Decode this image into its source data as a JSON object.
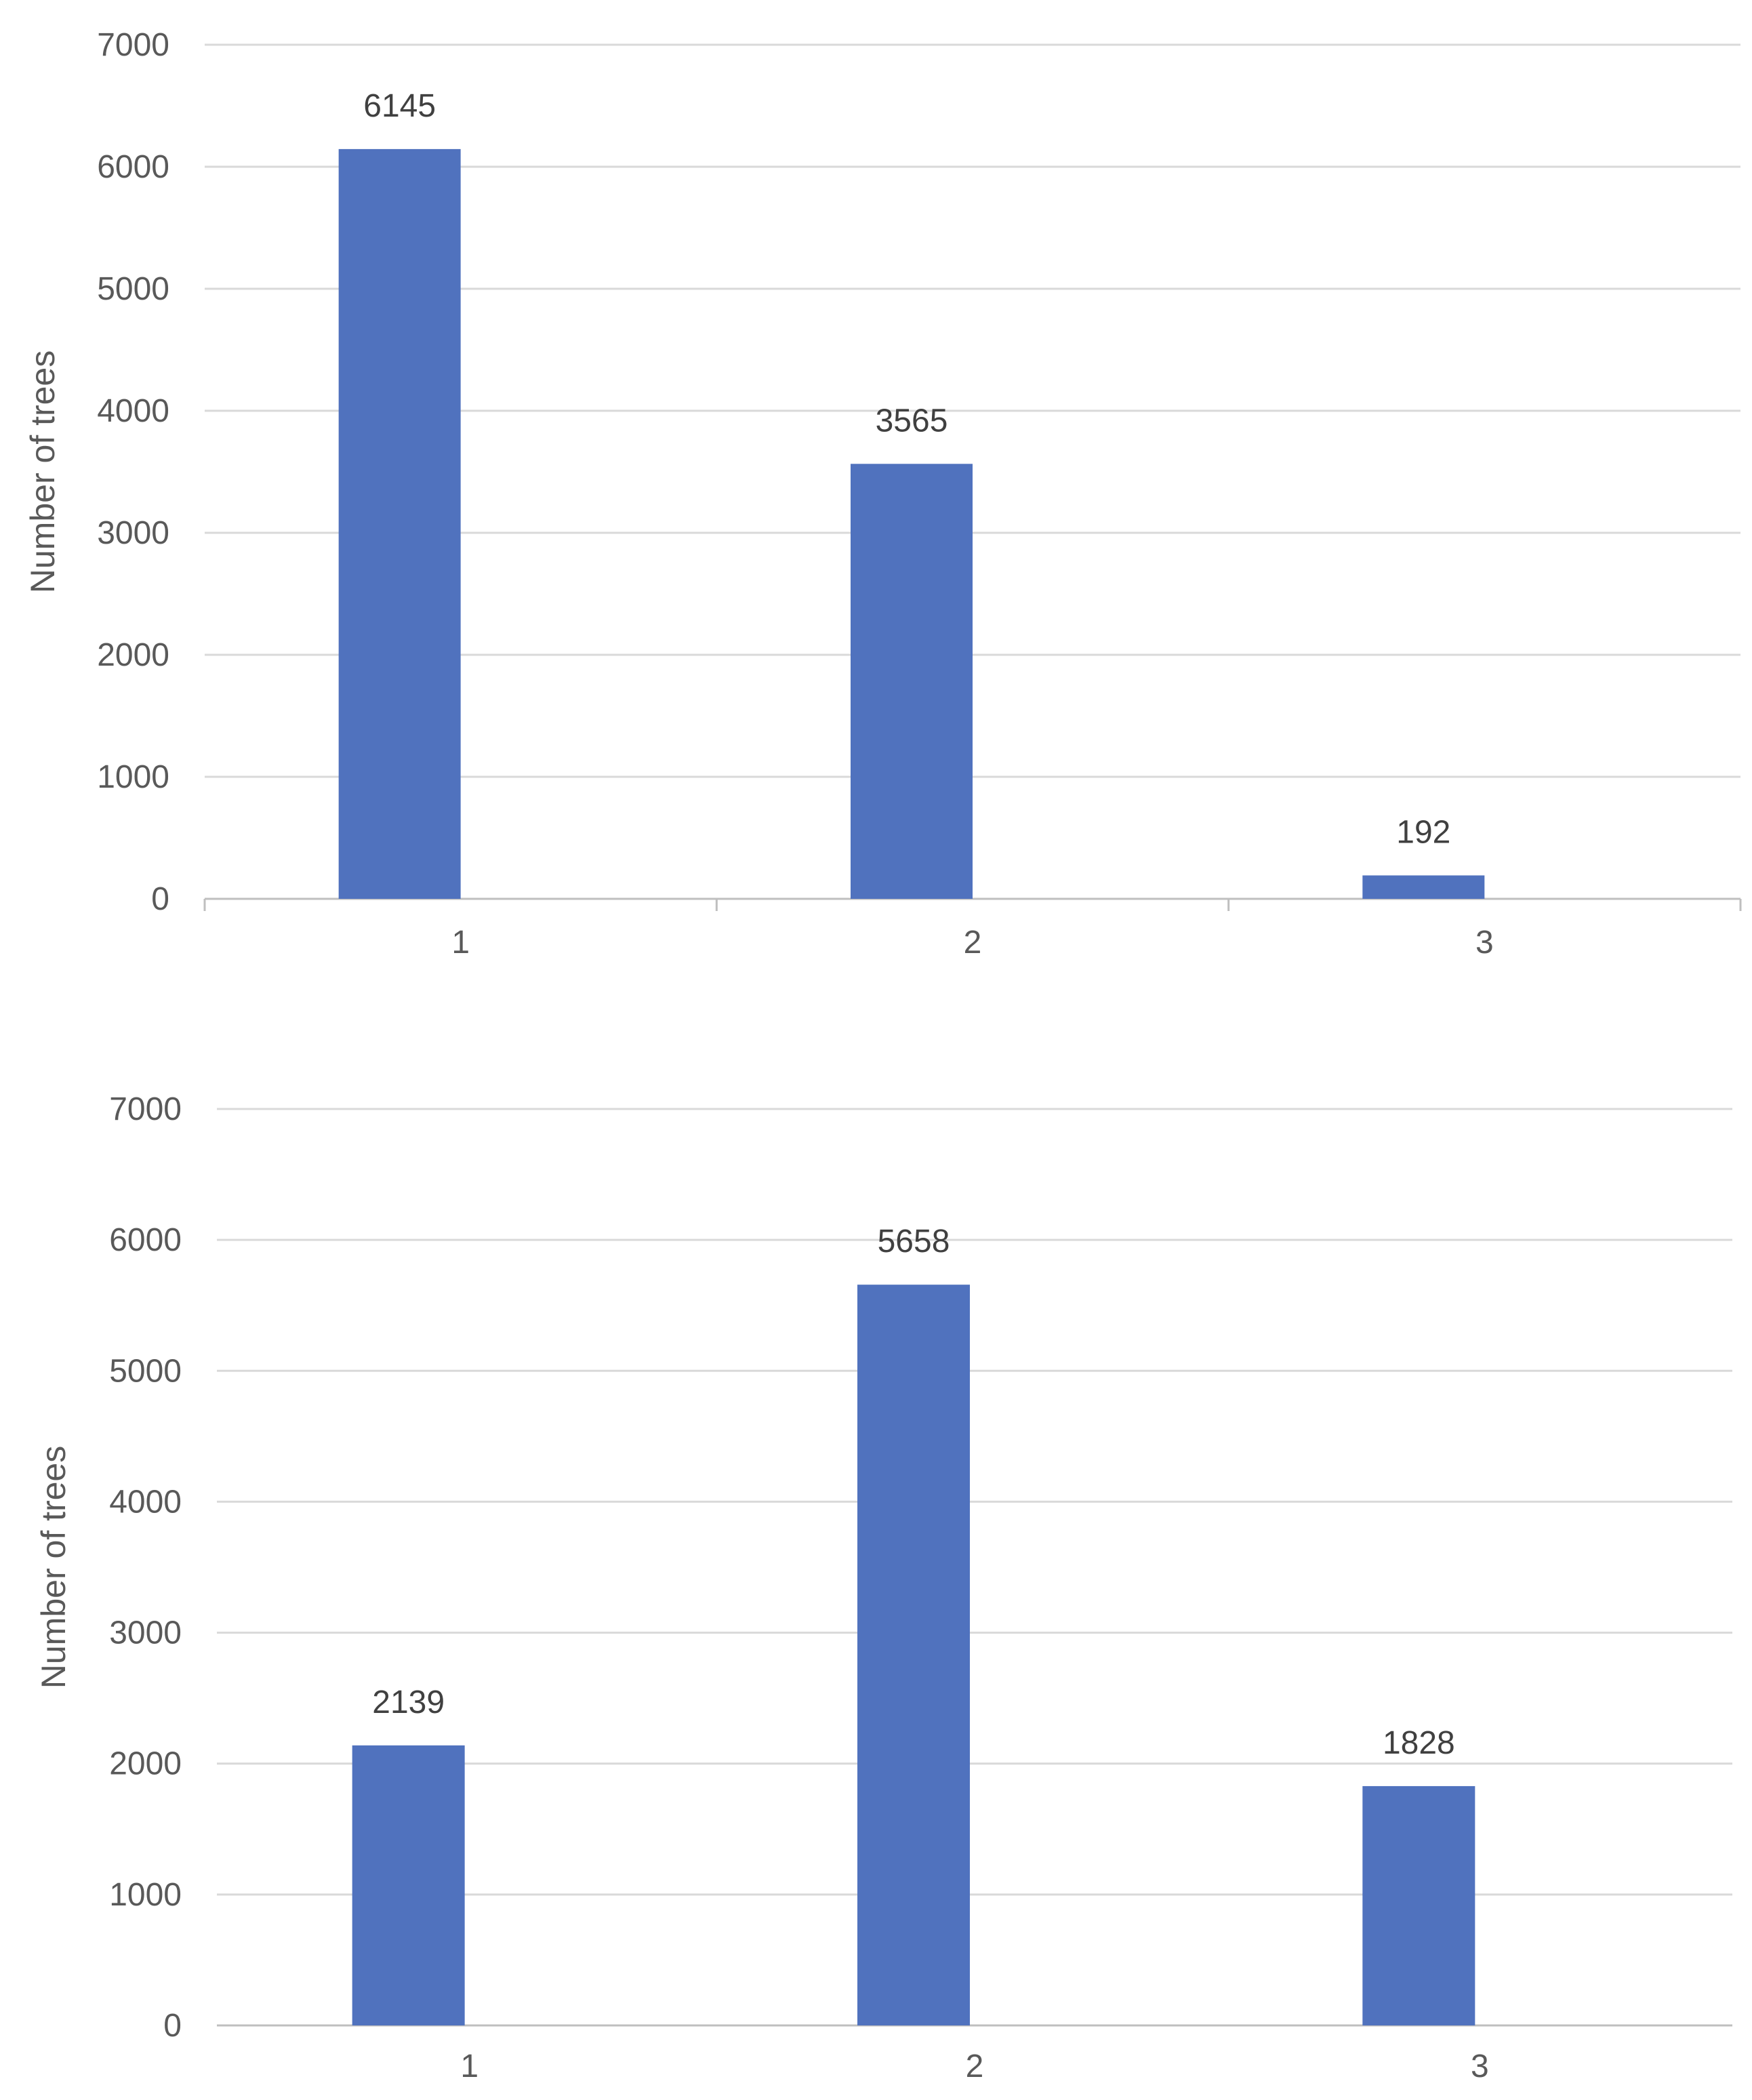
{
  "colors": {
    "bar": "#5072be",
    "grid": "#d9d9d9",
    "axis": "#bfbfbf"
  },
  "chart_data": [
    {
      "type": "bar",
      "title": "",
      "xlabel": "",
      "ylabel": "Number of trees",
      "ylim": [
        0,
        7000
      ],
      "yticks": [
        "0",
        "1000",
        "2000",
        "3000",
        "4000",
        "5000",
        "6000",
        "7000"
      ],
      "categories": [
        "1",
        "2",
        "3"
      ],
      "values": [
        6145,
        3565,
        192
      ],
      "data_labels": [
        "6145",
        "3565",
        "192"
      ],
      "grid": true,
      "legend": "none"
    },
    {
      "type": "bar",
      "title": "",
      "xlabel": "",
      "ylabel": "Number of trees",
      "ylim": [
        0,
        7000
      ],
      "yticks": [
        "0",
        "1000",
        "2000",
        "3000",
        "4000",
        "5000",
        "6000",
        "7000"
      ],
      "categories": [
        "1",
        "2",
        "3"
      ],
      "values": [
        2139,
        5658,
        1828
      ],
      "data_labels": [
        "2139",
        "5658",
        "1828"
      ],
      "grid": true,
      "legend": "none"
    }
  ]
}
